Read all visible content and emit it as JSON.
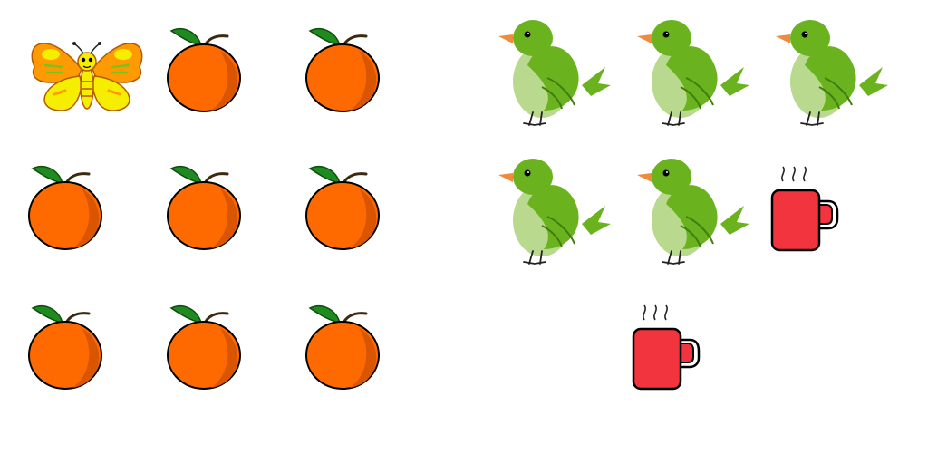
{
  "left_group": {
    "items": [
      "butterfly",
      "orange",
      "orange",
      "orange",
      "orange",
      "orange",
      "orange",
      "orange",
      "orange"
    ]
  },
  "right_group": {
    "items": [
      "bird",
      "bird",
      "bird",
      "bird",
      "bird",
      "cup",
      "cup"
    ]
  },
  "colors": {
    "background": "#ffffff",
    "orange_body": "#ff6a00",
    "orange_shade": "#d95500",
    "leaf": "#1f8a1f",
    "bird_green": "#6ab31e",
    "bird_light": "#b9d98f",
    "bird_beak": "#f08a3c",
    "cup_red": "#f2343f",
    "butterfly_orange": "#ff9a00",
    "butterfly_yellow": "#f6ee00"
  },
  "icons": {
    "butterfly": "butterfly-icon",
    "orange": "orange-fruit-icon",
    "bird": "green-bird-icon",
    "cup": "hot-cup-icon"
  }
}
